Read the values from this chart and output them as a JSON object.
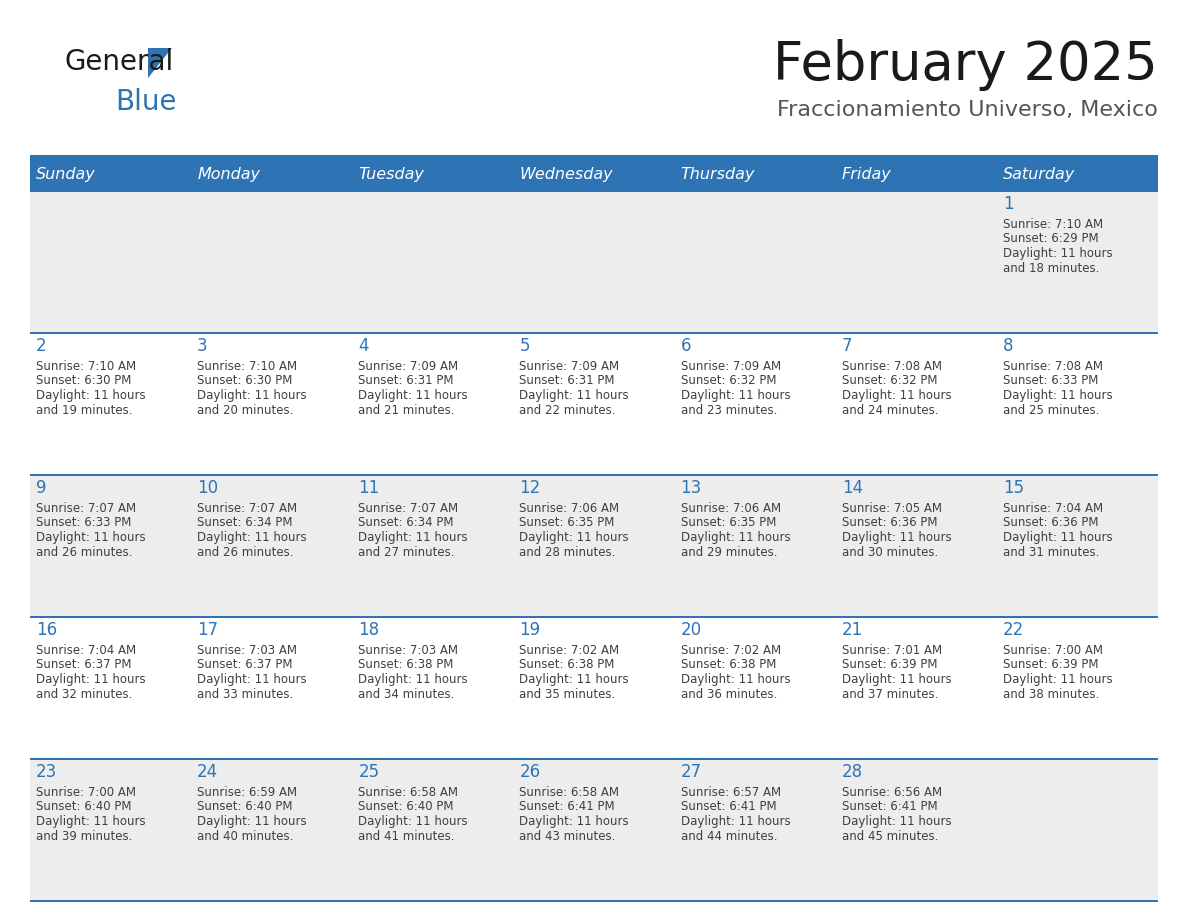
{
  "title": "February 2025",
  "subtitle": "Fraccionamiento Universo, Mexico",
  "header_bg": "#2E74B5",
  "header_text": "#FFFFFF",
  "row_bg_light": "#EDEDED",
  "row_bg_white": "#FFFFFF",
  "day_names": [
    "Sunday",
    "Monday",
    "Tuesday",
    "Wednesday",
    "Thursday",
    "Friday",
    "Saturday"
  ],
  "separator_color": "#2E74B5",
  "day_num_color": "#2E74B5",
  "cell_text_color": "#404040",
  "title_color": "#1a1a1a",
  "subtitle_color": "#555555",
  "logo_color_general": "#1a1a1a",
  "logo_color_blue": "#2E74B5",
  "logo_text_general": "General",
  "logo_text_blue": "Blue",
  "calendar": [
    [
      null,
      null,
      null,
      null,
      null,
      null,
      1
    ],
    [
      2,
      3,
      4,
      5,
      6,
      7,
      8
    ],
    [
      9,
      10,
      11,
      12,
      13,
      14,
      15
    ],
    [
      16,
      17,
      18,
      19,
      20,
      21,
      22
    ],
    [
      23,
      24,
      25,
      26,
      27,
      28,
      null
    ]
  ],
  "sunrise": {
    "1": "7:10 AM",
    "2": "7:10 AM",
    "3": "7:10 AM",
    "4": "7:09 AM",
    "5": "7:09 AM",
    "6": "7:09 AM",
    "7": "7:08 AM",
    "8": "7:08 AM",
    "9": "7:07 AM",
    "10": "7:07 AM",
    "11": "7:07 AM",
    "12": "7:06 AM",
    "13": "7:06 AM",
    "14": "7:05 AM",
    "15": "7:04 AM",
    "16": "7:04 AM",
    "17": "7:03 AM",
    "18": "7:03 AM",
    "19": "7:02 AM",
    "20": "7:02 AM",
    "21": "7:01 AM",
    "22": "7:00 AM",
    "23": "7:00 AM",
    "24": "6:59 AM",
    "25": "6:58 AM",
    "26": "6:58 AM",
    "27": "6:57 AM",
    "28": "6:56 AM"
  },
  "sunset": {
    "1": "6:29 PM",
    "2": "6:30 PM",
    "3": "6:30 PM",
    "4": "6:31 PM",
    "5": "6:31 PM",
    "6": "6:32 PM",
    "7": "6:32 PM",
    "8": "6:33 PM",
    "9": "6:33 PM",
    "10": "6:34 PM",
    "11": "6:34 PM",
    "12": "6:35 PM",
    "13": "6:35 PM",
    "14": "6:36 PM",
    "15": "6:36 PM",
    "16": "6:37 PM",
    "17": "6:37 PM",
    "18": "6:38 PM",
    "19": "6:38 PM",
    "20": "6:38 PM",
    "21": "6:39 PM",
    "22": "6:39 PM",
    "23": "6:40 PM",
    "24": "6:40 PM",
    "25": "6:40 PM",
    "26": "6:41 PM",
    "27": "6:41 PM",
    "28": "6:41 PM"
  },
  "daylight_minutes": {
    "1": 18,
    "2": 19,
    "3": 20,
    "4": 21,
    "5": 22,
    "6": 23,
    "7": 24,
    "8": 25,
    "9": 26,
    "10": 26,
    "11": 27,
    "12": 28,
    "13": 29,
    "14": 30,
    "15": 31,
    "16": 32,
    "17": 33,
    "18": 34,
    "19": 35,
    "20": 36,
    "21": 37,
    "22": 38,
    "23": 39,
    "24": 40,
    "25": 41,
    "26": 43,
    "27": 44,
    "28": 45
  }
}
